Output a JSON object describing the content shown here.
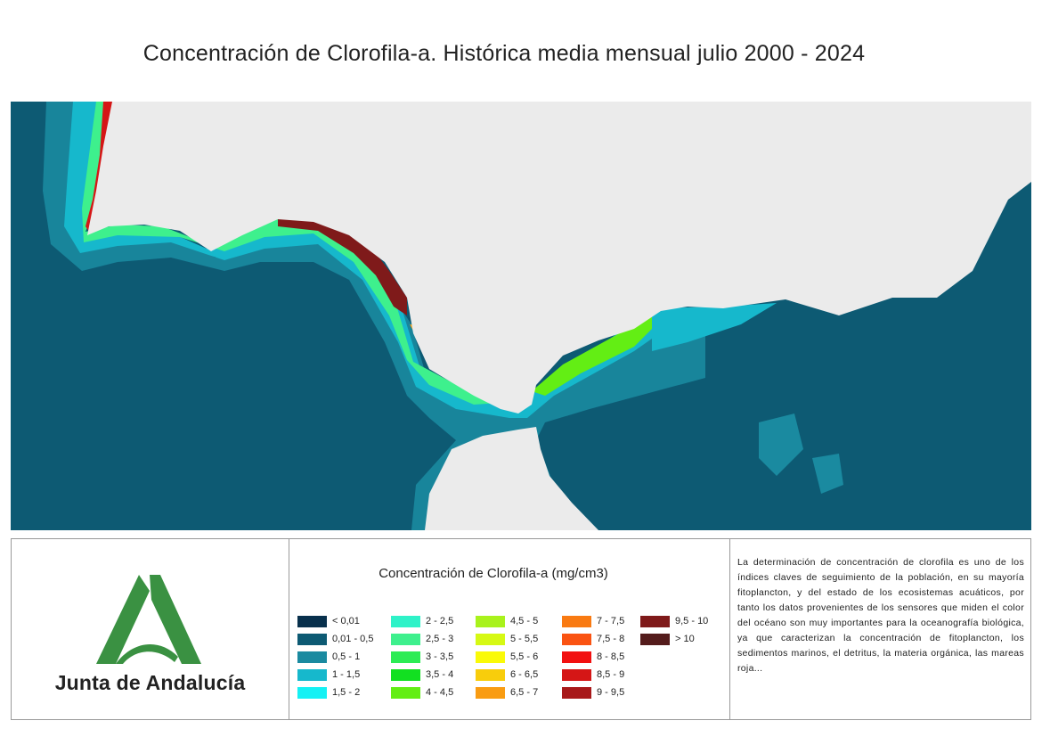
{
  "title": "Concentración de Clorofila-a. Histórica media mensual julio 2000 - 2024",
  "map": {
    "sea_color": "#0d5a73",
    "land_color": "#ebebeb"
  },
  "logo": {
    "text": "Junta de Andalucía",
    "icon": "junta-andalucia-logo",
    "color": "#3a9142"
  },
  "legend": {
    "title": "Concentración de Clorofila-a (mg/cm3)",
    "items": [
      {
        "label": "< 0,01",
        "color": "#08304c"
      },
      {
        "label": "0,01 - 0,5",
        "color": "#0d5a73"
      },
      {
        "label": "0,5 - 1",
        "color": "#1a8aa0"
      },
      {
        "label": "1 - 1,5",
        "color": "#16b8cc"
      },
      {
        "label": "1,5 - 2",
        "color": "#15f1f4"
      },
      {
        "label": "2 - 2,5",
        "color": "#2ef2c8"
      },
      {
        "label": "2,5 - 3",
        "color": "#3ef08d"
      },
      {
        "label": "3 - 3,5",
        "color": "#2cec54"
      },
      {
        "label": "3,5 - 4",
        "color": "#12e021"
      },
      {
        "label": "4 - 4,5",
        "color": "#63ee14"
      },
      {
        "label": "4,5 - 5",
        "color": "#a9f21c"
      },
      {
        "label": "5 - 5,5",
        "color": "#d6f914"
      },
      {
        "label": "5,5 - 6",
        "color": "#fafa08"
      },
      {
        "label": "6 - 6,5",
        "color": "#f8cd0c"
      },
      {
        "label": "6,5 - 7",
        "color": "#f99c12"
      },
      {
        "label": "7 - 7,5",
        "color": "#f97a12"
      },
      {
        "label": "7,5 - 8",
        "color": "#fa5312"
      },
      {
        "label": "8 - 8,5",
        "color": "#f21010"
      },
      {
        "label": "8,5 - 9",
        "color": "#d51616"
      },
      {
        "label": "9 - 9,5",
        "color": "#a8191a"
      },
      {
        "label": "9,5 - 10",
        "color": "#7f1a1a"
      },
      {
        "label": "> 10",
        "color": "#541c1c"
      }
    ]
  },
  "description": "La determinación de concentración de clorofila es uno de los índices claves de seguimiento de la población, en su mayoría fitoplancton, y del estado de los ecosistemas acuáticos, por tanto los datos provenientes de los sensores que miden el color del océano son muy importantes para la oceanografía biológica, ya que caracterizan la concentración de fitoplancton, los sedimentos marinos, el detritus, la materia orgánica, las mareas roja..."
}
